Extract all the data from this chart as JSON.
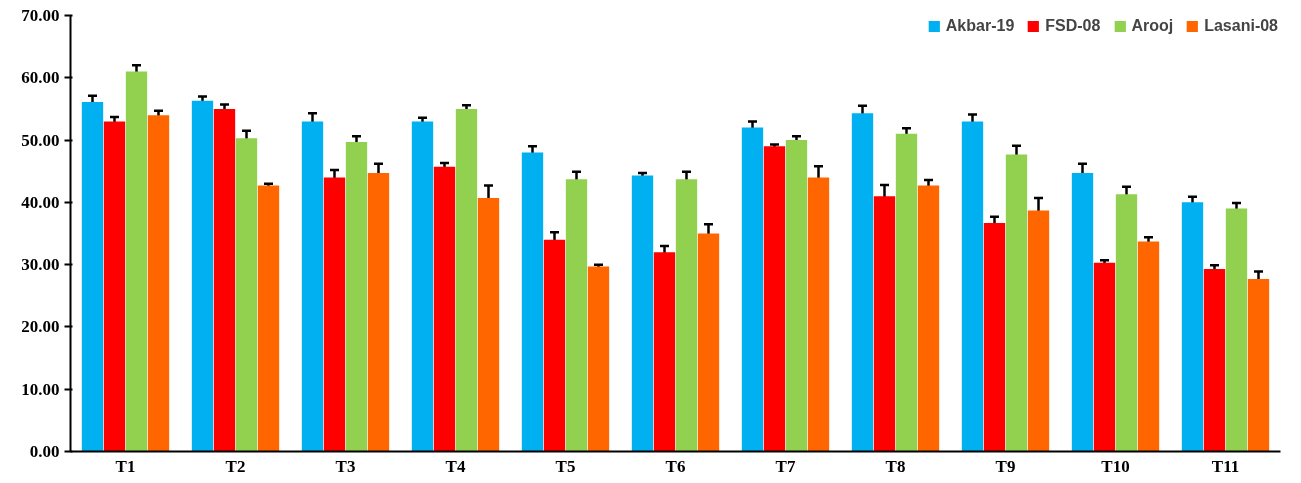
{
  "chart_data": {
    "type": "bar",
    "categories": [
      "T1",
      "T2",
      "T3",
      "T4",
      "T5",
      "T6",
      "T7",
      "T8",
      "T9",
      "T10",
      "T11"
    ],
    "series": [
      {
        "name": "Akbar-19",
        "color": "#00b0f0",
        "values": [
          56.1,
          56.3,
          53,
          53,
          48,
          44.3,
          52,
          54.3,
          53,
          44.7,
          40
        ],
        "errors": [
          1,
          0.7,
          1.3,
          0.6,
          1,
          0.4,
          1,
          1.2,
          1.1,
          1.5,
          0.9
        ]
      },
      {
        "name": "FSD-08",
        "color": "#ff0000",
        "values": [
          53,
          55,
          44,
          45.7,
          34,
          32,
          49,
          41,
          36.7,
          30.3,
          29.3
        ],
        "errors": [
          0.7,
          0.7,
          1.2,
          0.6,
          1.2,
          1,
          0.3,
          1.8,
          1,
          0.4,
          0.6
        ]
      },
      {
        "name": "Arooj",
        "color": "#92d050",
        "values": [
          61,
          50.3,
          49.7,
          55,
          43.7,
          43.7,
          50,
          51,
          47.7,
          41.3,
          39
        ],
        "errors": [
          1,
          1.2,
          0.9,
          0.6,
          1.2,
          1.2,
          0.6,
          0.9,
          1.4,
          1.2,
          0.9
        ]
      },
      {
        "name": "Lasani-08",
        "color": "#ff6600",
        "values": [
          54,
          42.7,
          44.7,
          40.7,
          29.7,
          35,
          44,
          42.7,
          38.7,
          33.7,
          27.7
        ],
        "errors": [
          0.7,
          0.3,
          1.5,
          2,
          0.3,
          1.5,
          1.8,
          0.9,
          2,
          0.7,
          1.2
        ]
      }
    ],
    "ylim": [
      0,
      70
    ],
    "yticks": [
      {
        "value": 0,
        "label": "0.00"
      },
      {
        "value": 10,
        "label": "10.00"
      },
      {
        "value": 20,
        "label": "20.00"
      },
      {
        "value": 30,
        "label": "30.00"
      },
      {
        "value": 40,
        "label": "40.00"
      },
      {
        "value": 50,
        "label": "50.00"
      },
      {
        "value": 60,
        "label": "60.00"
      },
      {
        "value": 70,
        "label": "70.00"
      }
    ],
    "grid": false,
    "legend": "top right"
  }
}
